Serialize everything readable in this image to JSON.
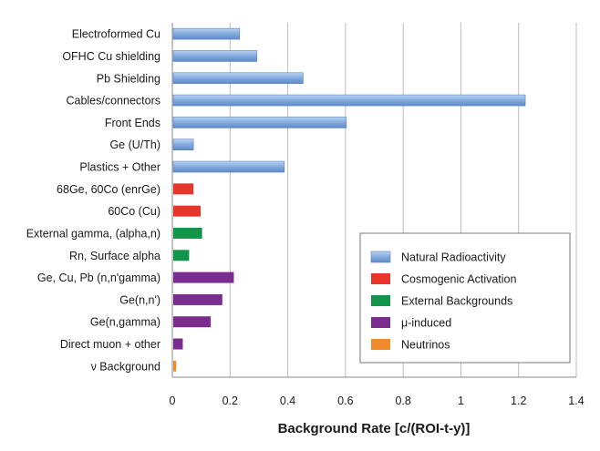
{
  "chart_data": {
    "type": "bar",
    "orientation": "horizontal",
    "title": "",
    "xlabel": "Background Rate [c/(ROI-t-y)]",
    "ylabel": "",
    "xlim": [
      0,
      1.4
    ],
    "xticks": [
      0,
      0.2,
      0.4,
      0.6,
      0.8,
      1,
      1.2,
      1.4
    ],
    "xtick_labels": [
      "0",
      "0.2",
      "0.4",
      "0.6",
      "0.8",
      "1",
      "1.2",
      "1.4"
    ],
    "grid": "vertical",
    "legend_position": "bottom-right",
    "categories": [
      "Electroformed Cu",
      "OFHC Cu shielding",
      "Pb Shielding",
      "Cables/connectors",
      "Front Ends",
      "Ge (U/Th)",
      "Plastics + Other",
      "68Ge, 60Co (enrGe)",
      "60Co (Cu)",
      "External gamma, (alpha,n)",
      "Rn, Surface alpha",
      "Ge, Cu, Pb (n,n'gamma)",
      "Ge(n,n')",
      "Ge(n,gamma)",
      "Direct muon + other",
      "ν  Background"
    ],
    "values": [
      0.23,
      0.29,
      0.45,
      1.22,
      0.6,
      0.07,
      0.385,
      0.07,
      0.095,
      0.1,
      0.055,
      0.21,
      0.17,
      0.13,
      0.033,
      0.01
    ],
    "groups": [
      0,
      0,
      0,
      0,
      0,
      0,
      0,
      1,
      1,
      2,
      2,
      3,
      3,
      3,
      3,
      4
    ],
    "series": [
      {
        "name": "Natural Radioactivity",
        "color": "#7fa6dc"
      },
      {
        "name": "Cosmogenic Activation",
        "color": "#e8352c"
      },
      {
        "name": "External Backgrounds",
        "color": "#12944a"
      },
      {
        "name": "μ-induced",
        "color": "#7a2d8e"
      },
      {
        "name": "Neutrinos",
        "color": "#f08a2c"
      }
    ]
  }
}
